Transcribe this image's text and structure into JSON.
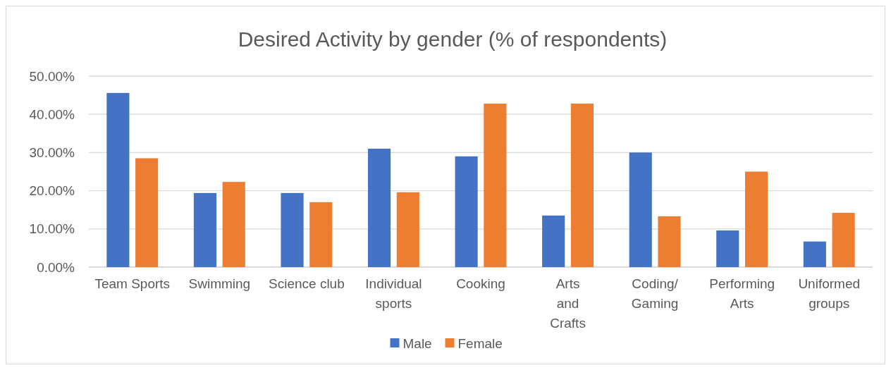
{
  "chart_data": {
    "type": "bar",
    "title": "Desired Activity by gender (% of respondents)",
    "categories": [
      "Team Sports",
      "Swimming",
      "Science club",
      "Individual sports",
      "Cooking",
      "Arts and Crafts",
      "Coding/ Gaming",
      "Performing Arts",
      "Uniformed groups"
    ],
    "series": [
      {
        "name": "Male",
        "color": "#4472c4",
        "values": [
          45.6,
          19.4,
          19.4,
          31.0,
          29.0,
          13.5,
          30.0,
          9.6,
          6.7
        ]
      },
      {
        "name": "Female",
        "color": "#ed7d31",
        "values": [
          28.5,
          22.3,
          17.0,
          19.6,
          42.8,
          42.8,
          13.3,
          25.0,
          14.2
        ]
      }
    ],
    "ylim": [
      0,
      50
    ],
    "yticks": [
      {
        "value": 0,
        "label": "0.00%"
      },
      {
        "value": 10,
        "label": "10.00%"
      },
      {
        "value": 20,
        "label": "20.00%"
      },
      {
        "value": 30,
        "label": "30.00%"
      },
      {
        "value": 40,
        "label": "40.00%"
      },
      {
        "value": 50,
        "label": "50.00%"
      }
    ],
    "grid": "y",
    "legend": "bottom"
  }
}
